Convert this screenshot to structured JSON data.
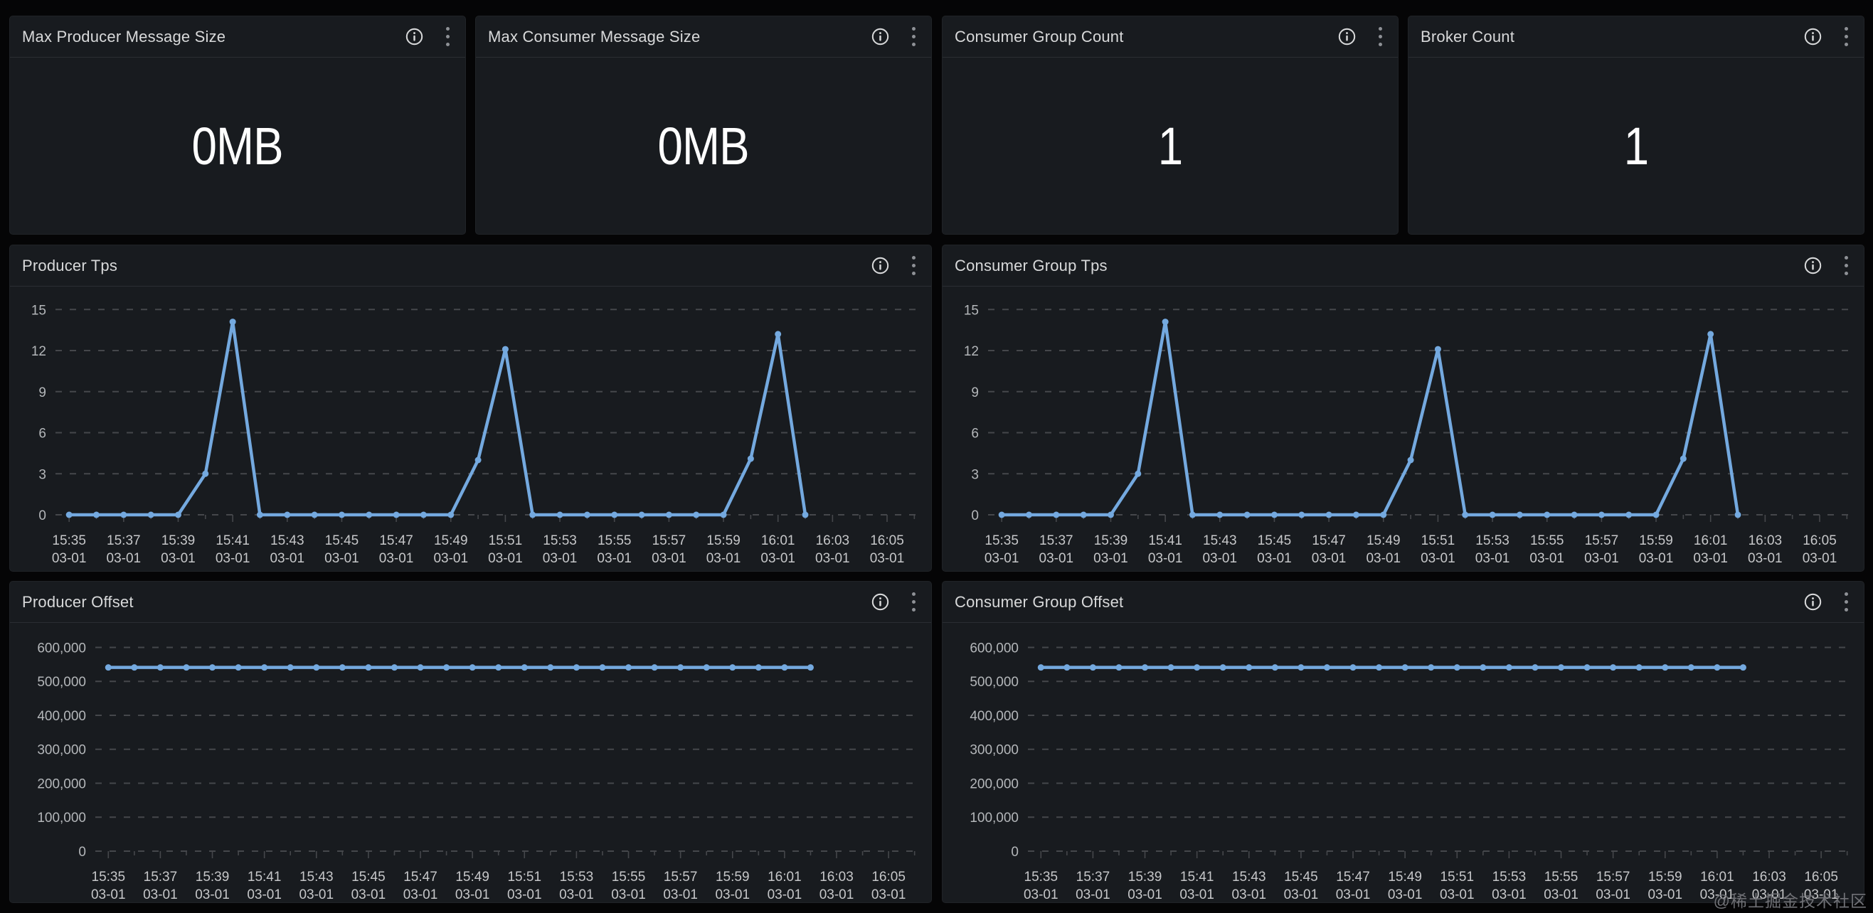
{
  "page": {
    "watermark": "@稀土掘金技术社区"
  },
  "panels": {
    "stat": [
      {
        "title": "Max Producer Message Size",
        "value": "0MB"
      },
      {
        "title": "Max Consumer Message Size",
        "value": "0MB"
      },
      {
        "title": "Consumer Group Count",
        "value": "1"
      },
      {
        "title": "Broker Count",
        "value": "1"
      }
    ],
    "icons": {
      "info": "info-icon",
      "menu": "kebab-menu-icon"
    }
  },
  "chart_data": [
    {
      "type": "line",
      "title": "Producer Tps",
      "x_tick_times": [
        "15:35",
        "15:37",
        "15:39",
        "15:41",
        "15:43",
        "15:45",
        "15:47",
        "15:49",
        "15:51",
        "15:53",
        "15:55",
        "15:57",
        "15:59",
        "16:01",
        "16:03",
        "16:05"
      ],
      "x_date_label": "03-01",
      "x_start_minute": 0,
      "x_step_minutes": 1,
      "values": [
        0,
        0,
        0,
        0,
        0,
        3,
        14.1,
        0,
        0,
        0,
        0,
        0,
        0,
        0,
        0,
        4,
        12.1,
        0,
        0,
        0,
        0,
        0,
        0,
        0,
        0,
        4.1,
        13.2,
        0
      ],
      "yticks": [
        0,
        3,
        6,
        9,
        12,
        15
      ],
      "ytick_labels": [
        "0",
        "3",
        "6",
        "9",
        "12",
        "15"
      ],
      "ylim": [
        0,
        16
      ],
      "xlim_minutes": [
        -0.5,
        31.2
      ],
      "grid": "dashed",
      "legend": "none",
      "line_color": "#74a9df"
    },
    {
      "type": "line",
      "title": "Consumer Group Tps",
      "x_tick_times": [
        "15:35",
        "15:37",
        "15:39",
        "15:41",
        "15:43",
        "15:45",
        "15:47",
        "15:49",
        "15:51",
        "15:53",
        "15:55",
        "15:57",
        "15:59",
        "16:01",
        "16:03",
        "16:05"
      ],
      "x_date_label": "03-01",
      "x_start_minute": 0,
      "x_step_minutes": 1,
      "values": [
        0,
        0,
        0,
        0,
        0,
        3,
        14.1,
        0,
        0,
        0,
        0,
        0,
        0,
        0,
        0,
        4,
        12.1,
        0,
        0,
        0,
        0,
        0,
        0,
        0,
        0,
        4.1,
        13.2,
        0
      ],
      "yticks": [
        0,
        3,
        6,
        9,
        12,
        15
      ],
      "ytick_labels": [
        "0",
        "3",
        "6",
        "9",
        "12",
        "15"
      ],
      "ylim": [
        0,
        16
      ],
      "xlim_minutes": [
        -0.5,
        31.2
      ],
      "grid": "dashed",
      "legend": "none",
      "line_color": "#74a9df"
    },
    {
      "type": "line",
      "title": "Producer Offset",
      "x_tick_times": [
        "15:35",
        "15:37",
        "15:39",
        "15:41",
        "15:43",
        "15:45",
        "15:47",
        "15:49",
        "15:51",
        "15:53",
        "15:55",
        "15:57",
        "15:59",
        "16:01",
        "16:03",
        "16:05"
      ],
      "x_date_label": "03-01",
      "x_start_minute": 0,
      "x_step_minutes": 1,
      "values": [
        541000,
        541000,
        541000,
        541000,
        541000,
        541000,
        541000,
        541000,
        541000,
        541000,
        541000,
        541000,
        541000,
        541000,
        541000,
        541000,
        541000,
        541000,
        541000,
        541000,
        541000,
        541000,
        541000,
        541000,
        541000,
        541000,
        541000,
        541000
      ],
      "yticks": [
        0,
        100000,
        200000,
        300000,
        400000,
        500000,
        600000
      ],
      "ytick_labels": [
        "0",
        "100,000",
        "200,000",
        "300,000",
        "400,000",
        "500,000",
        "600,000"
      ],
      "ylim": [
        0,
        645000
      ],
      "xlim_minutes": [
        -0.5,
        31.2
      ],
      "grid": "dashed",
      "legend": "none",
      "line_color": "#74a9df"
    },
    {
      "type": "line",
      "title": "Consumer Group Offset",
      "x_tick_times": [
        "15:35",
        "15:37",
        "15:39",
        "15:41",
        "15:43",
        "15:45",
        "15:47",
        "15:49",
        "15:51",
        "15:53",
        "15:55",
        "15:57",
        "15:59",
        "16:01",
        "16:03",
        "16:05"
      ],
      "x_date_label": "03-01",
      "x_start_minute": 0,
      "x_step_minutes": 1,
      "values": [
        541000,
        541000,
        541000,
        541000,
        541000,
        541000,
        541000,
        541000,
        541000,
        541000,
        541000,
        541000,
        541000,
        541000,
        541000,
        541000,
        541000,
        541000,
        541000,
        541000,
        541000,
        541000,
        541000,
        541000,
        541000,
        541000,
        541000,
        541000
      ],
      "yticks": [
        0,
        100000,
        200000,
        300000,
        400000,
        500000,
        600000
      ],
      "ytick_labels": [
        "0",
        "100,000",
        "200,000",
        "300,000",
        "400,000",
        "500,000",
        "600,000"
      ],
      "ylim": [
        0,
        645000
      ],
      "xlim_minutes": [
        -0.5,
        31.2
      ],
      "grid": "dashed",
      "legend": "none",
      "line_color": "#74a9df"
    }
  ],
  "theme": {
    "page_bg": "#050506",
    "panel_bg": "#181b1f",
    "grid_color": "#45474b",
    "y_axis_text": "#b4b7ba",
    "x_axis_text": "#c6c7c9",
    "series_color": "#74a9df"
  }
}
